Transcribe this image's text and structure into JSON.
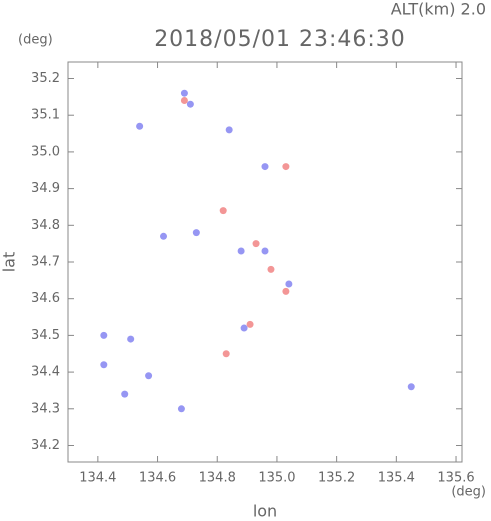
{
  "chart_data": {
    "type": "scatter",
    "header": "ALT(km) 2.0",
    "y_unit": "(deg)",
    "title": "2018/05/01 23:46:30",
    "x_label": "lon",
    "y_label": "lat",
    "x_unit": "(deg)",
    "xlim": [
      134.3,
      135.62
    ],
    "ylim": [
      34.155,
      35.245
    ],
    "xticks": [
      134.4,
      134.6,
      134.8,
      {
        "value": 135,
        "label": "135.0"
      },
      135.2,
      135.4,
      135.6
    ],
    "yticks": [
      34.2,
      34.3,
      34.4,
      34.5,
      34.6,
      34.7,
      34.8,
      34.9,
      {
        "value": 35,
        "label": "35.0"
      },
      35.1,
      35.2
    ],
    "series": [
      {
        "color": "#7c7cf0",
        "x": [
          134.69,
          134.71,
          134.54,
          134.84,
          134.96,
          134.62,
          134.73,
          134.88,
          134.96,
          135.04,
          134.89,
          134.42,
          134.51,
          134.42,
          134.49,
          135.45,
          134.68,
          134.57
        ],
        "y": [
          35.16,
          35.13,
          35.07,
          35.06,
          34.96,
          34.77,
          34.78,
          34.73,
          34.73,
          34.64,
          34.52,
          34.5,
          34.49,
          34.42,
          34.34,
          34.36,
          34.3,
          34.39
        ]
      },
      {
        "color": "#f07c7c",
        "x": [
          134.69,
          134.82,
          134.93,
          134.98,
          135.03,
          134.91,
          134.83,
          135.03
        ],
        "y": [
          35.14,
          34.84,
          34.75,
          34.68,
          34.62,
          34.53,
          34.45,
          34.96
        ]
      }
    ]
  }
}
